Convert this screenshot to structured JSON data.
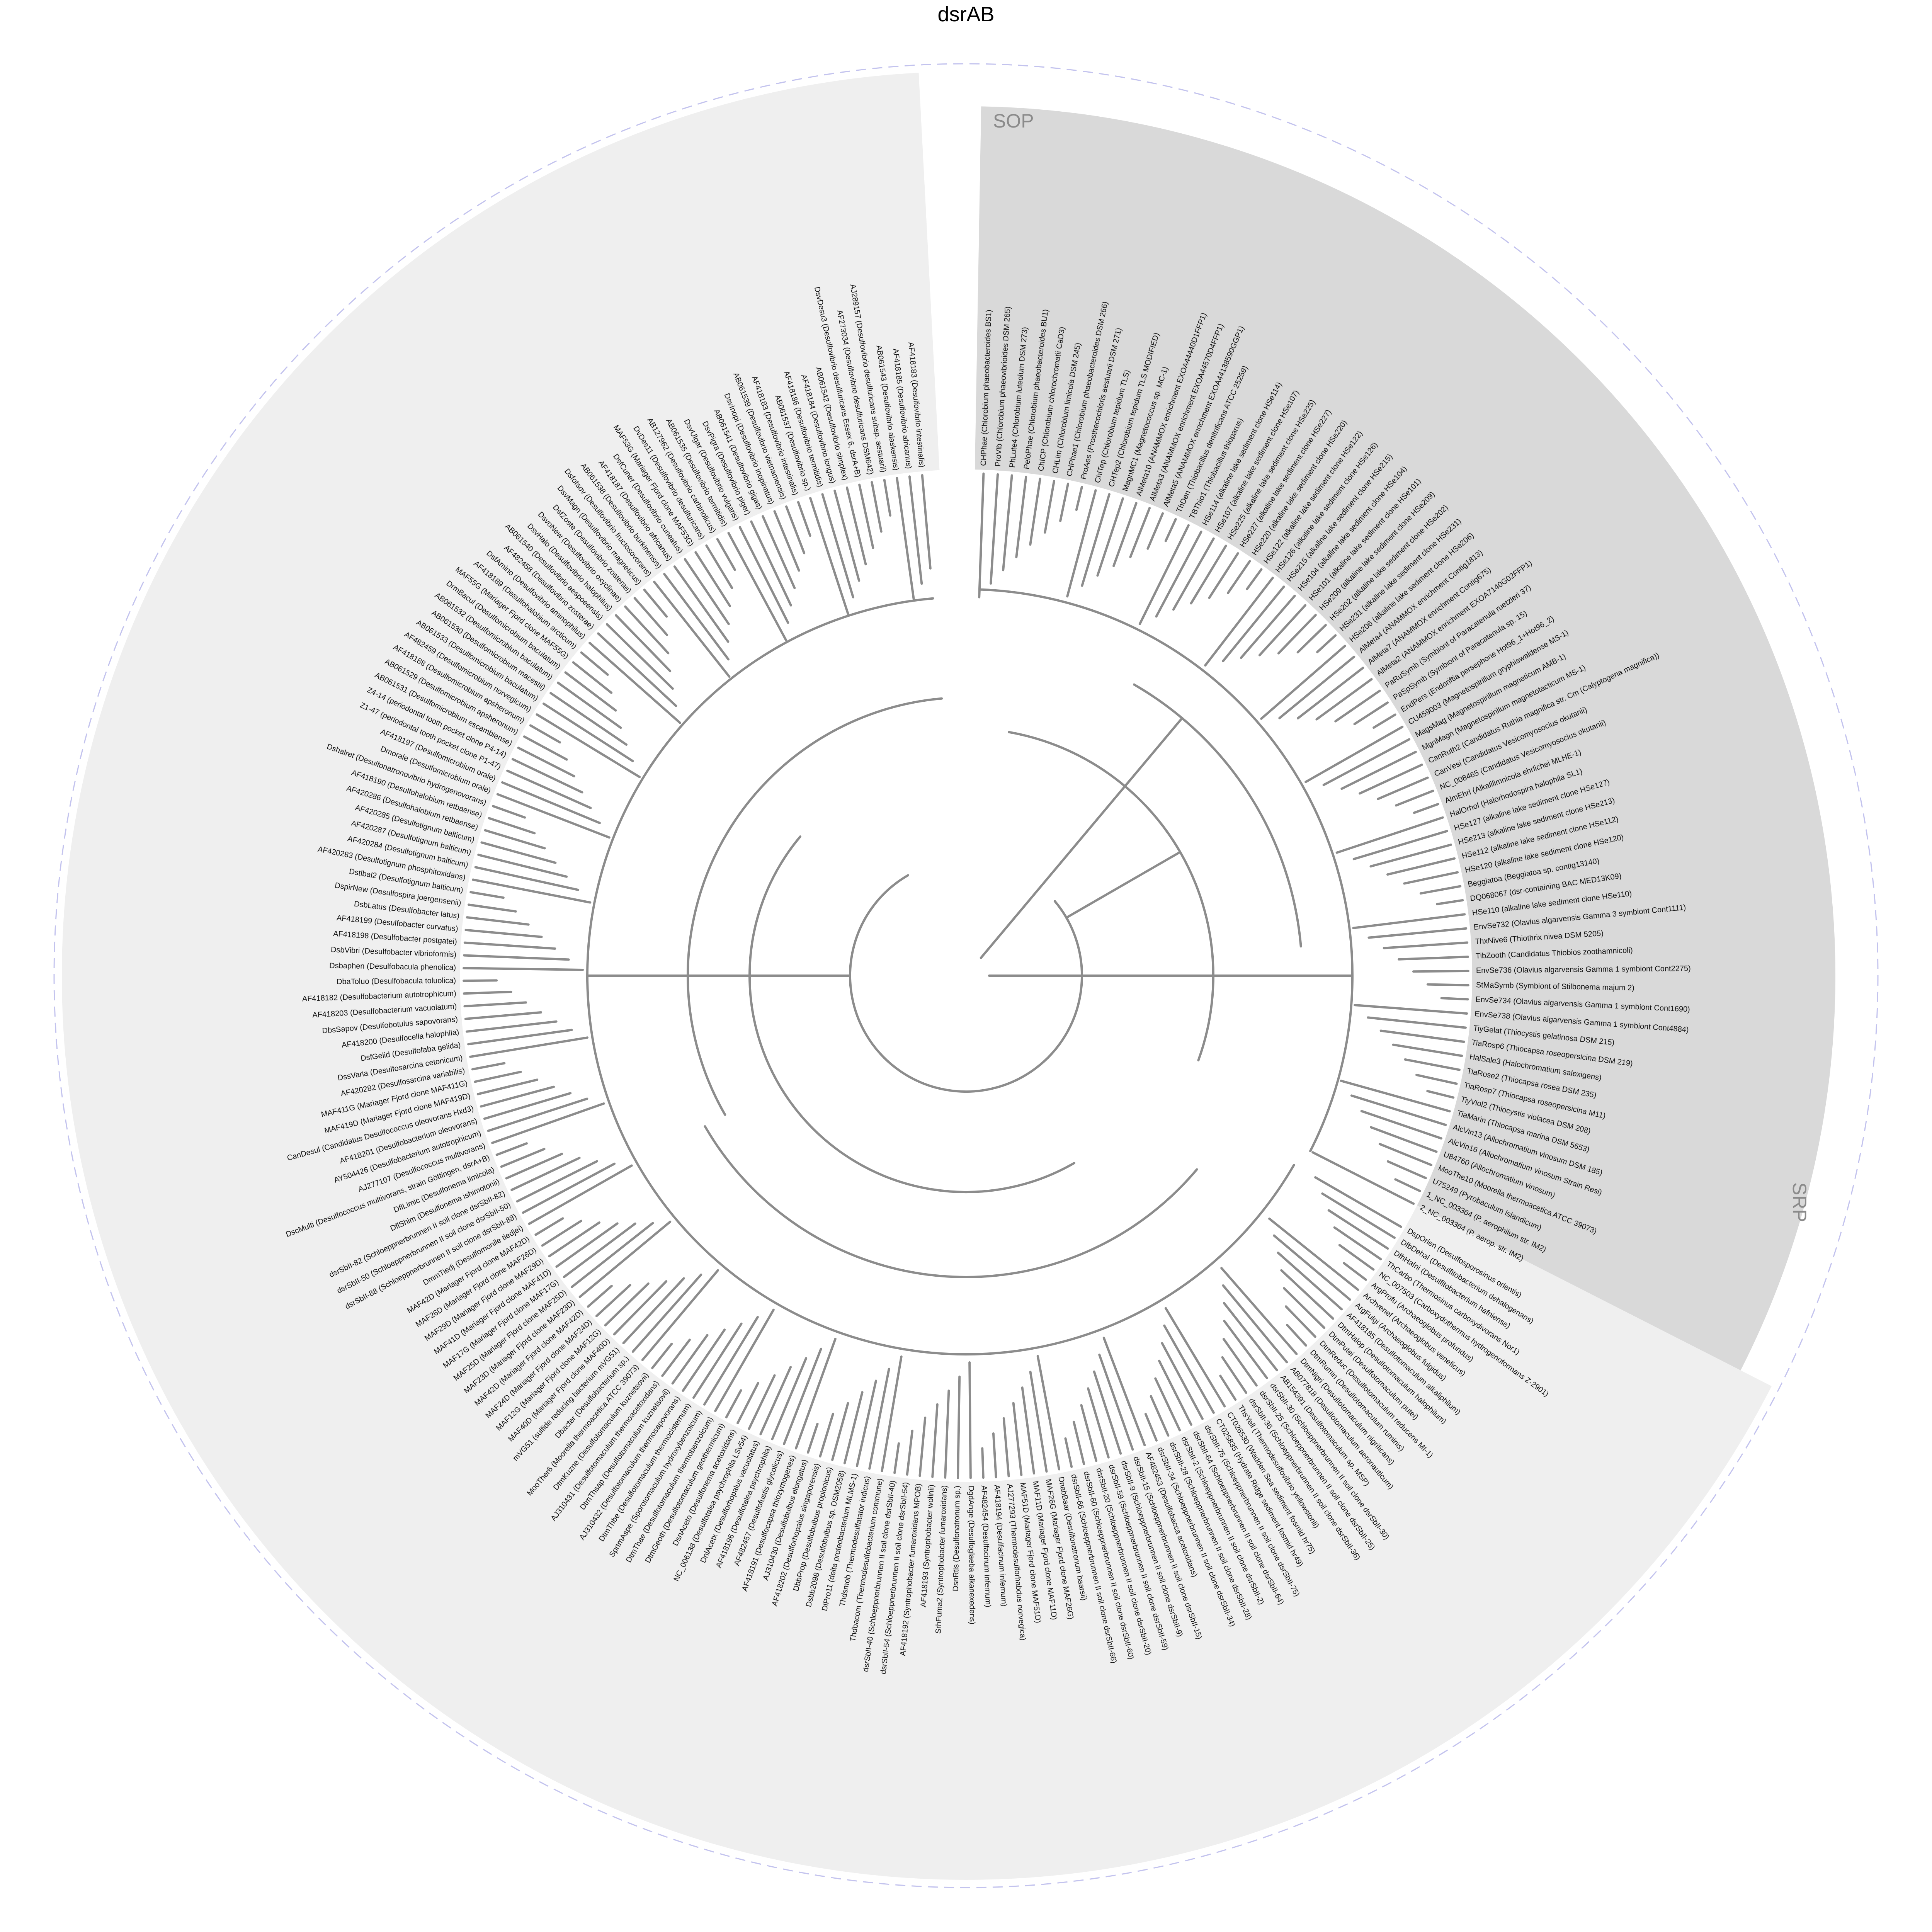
{
  "title": "dsrAB",
  "colors": {
    "sop_sector": "#d9d9d9",
    "srp_sector": "#efefef",
    "branch": "#8c8c8c",
    "outer_ring": "#b9b9e8"
  },
  "clades": [
    {
      "id": "sop",
      "label": "SOP"
    },
    {
      "id": "srp",
      "label": "SRP"
    }
  ],
  "leaves_sop": [
    "CHPhae (Chlorobium phaeobacteroides BS1)",
    "ProVib (Chlorobium phaeovibrioides DSM 265)",
    "PhLute4 (Chlorobium luteolum DSM 273)",
    "PeloPhae (Chlorobium phaeobacteroides BU1)",
    "ChICP (Chlorobium chlorochromatii CaD3)",
    "CHLim (Chlorobium limicola DSM 245)",
    "CHPhae1 (Chlorobium phaeobacteroides DSM 266)",
    "ProAes (Prosthecochloris aestuarii DSM 271)",
    "ChlTep (Chlorobium tepidum TLS)",
    "CHTep2 (Chlorobium tepidum TLS MODIFIED)",
    "MagnMC1 (Magnetococcus sp. MC-1)",
    "AlMeta10 (ANAMMOX enrichment EXOA44440D1FFP1)",
    "AlMeta3 (ANAMMOX enrichment EXOA44570D4FFP1)",
    "AlMeta5 (ANAMMOX enrichment EXOA44138590GGP1)",
    "ThDen (Thiobacillus denitrificans ATCC 25259)",
    "TBThio1 (Thiobacillus thioparus)",
    "HSe114 (alkaline lake sediment clone HSe114)",
    "HSe107 (alkaline lake sediment clone HSe107)",
    "HSe225 (alkaline lake sediment clone HSe225)",
    "HSe227 (alkaline lake sediment clone HSe227)",
    "HSe220 (alkaline lake sediment clone HSe220)",
    "HSe122 (alkaline lake sediment clone HSe122)",
    "HSe126 (alkaline lake sediment clone HSe126)",
    "HSe215 (alkaline lake sediment clone HSe215)",
    "HSe104 (alkaline lake sediment clone HSe104)",
    "HSe101 (alkaline lake sediment clone HSe101)",
    "HSe209 (alkaline lake sediment clone HSe209)",
    "HSe202 (alkaline lake sediment clone HSe202)",
    "HSe231 (alkaline lake sediment clone HSe231)",
    "HSe206 (alkaline lake sediment clone HSe206)",
    "AlMeta4 (ANAMMOX enrichment Contig1813)",
    "AlMeta7 (ANAMMOX enrichment Contig675)",
    "AlMeta2 (ANAMMOX enrichment EXOA7140G02FFP1)",
    "PaRuSymb (Symbiont of Paracatenula ruetzleri 37)",
    "PaSpSymb (Symbiont of Paracatenula sp. 15)",
    "EndPers (Endoriftia persephone Hot96_1+Hot96_2)",
    "CU459003 (Magnetospirillum gryphiswaldense MS-1)",
    "MagsMag (Magnetospirillum magneticum AMB-1)",
    "MgnMagn (Magnetospirillum magnetotacticum MS-1)",
    "CanRuth2 (Candidatus Ruthia magnifica str. Cm (Calyptogena magnifica))",
    "CanVesi (Candidatus Vesicomyosocius okutanii)",
    "NC_008465 (Candidatus Vesicomyosocius okutanii)",
    "AlmEhrl (Alkalilimnicola ehrlichei MLHE-1)",
    "HalOrhol (Halorhodospira halophila SL1)",
    "HSe127 (alkaline lake sediment clone HSe127)",
    "HSe213 (alkaline lake sediment clone HSe213)",
    "HSe112 (alkaline lake sediment clone HSe112)",
    "HSe120 (alkaline lake sediment clone HSe120)",
    "Beggiatoa (Beggiatoa sp. contig13140)",
    "DQ068067 (dsr-containing BAC MED13K09)",
    "HSe110 (alkaline lake sediment clone HSe110)",
    "EnvSe732 (Olavius algarvensis Gamma 3 symbiont Cont1111)",
    "ThxNive6 (Thiothrix nivea DSM 5205)",
    "TibZooth (Candidatus Thiobios zoothamnicoli)",
    "EnvSe736 (Olavius algarvensis Gamma 1 symbiont Cont2275)",
    "StMaSymb (Symbiont of Stilbonema majum 2)",
    "EnvSe734 (Olavius algarvensis Gamma 1 symbiont Cont1690)",
    "EnvSe738 (Olavius algarvensis Gamma 1 symbiont Cont4884)",
    "TiyGelat (Thiocystis gelatinosa DSM 215)",
    "TiaRosp6 (Thiocapsa roseopersicina DSM 219)",
    "HalSale3 (Halochromatium salexigens)",
    "TiaRose2 (Thiocapsa rosea DSM 235)",
    "TiaRosp7 (Thiocapsa roseopersicina M11)",
    "TiyViol2 (Thiocystis violacea DSM 208)",
    "TiaMarin (Thiocapsa marina DSM 5653)",
    "AlcVin13 (Allochromatium vinosum DSM 185)",
    "AlcVin16 (Allochromatium vinosum Strain Resi)",
    "U84760 (Allochromatium vinosum)",
    "MooThe10 (Moorella thermoacetica ATCC 39073)",
    "U75249 (Pyrobaculum islandicum)",
    "1_NC_003364 (P. aerophilum str. IM2)",
    "2_NC_003364 (P. aerop. str. IM2)"
  ],
  "leaves_srp": [
    "DspOrien (Desulfosporosinus orientis)",
    "DfbDehal (Desulfitobacterium dehalogenans)",
    "DfhHafni (Desulfitobacterium hafniense)",
    "ThCarbo (Thermosinus carboxydivorans Nor1)",
    "NC_007503 (Carboxydothermus hydrogenoformans Z-2901)",
    "ArgProfu (Archaeoglobus profundus)",
    "Archvenef (Archaeoglobus veneficus)",
    "ArgFulgi (Archaeoglobus fulgidus)",
    "AF418185 (Desulfotomaculum alkaliphilum)",
    "DtmHalop (Desulfotomaculum halophilum)",
    "DtmPutei (Desulfotomaculum putei)",
    "DtmReduc (Desulfotomaculum reducens MI-1)",
    "DtmRumin (Desulfotomaculum ruminis)",
    "DtmNigri (Desulfotomaculum nigrificans)",
    "AB077818 (Desulfotomaculum aeronauticum)",
    "AB154391 (Desulfotomaculum sp. MSP)",
    "dsrSbII-30 (Schloeppnerbrunnen II soil clone dsrSbII-30)",
    "dsrSbII-25 (Schloeppnerbrunnen II soil clone dsrSbII-25)",
    "dsrSbII-36 (Schloeppnerbrunnen II soil clone dsrSbII-36)",
    "ThsYell (Thermodesulfovibrio yellowstonii)",
    "CT026530 (Wadden Sea sediment fosmid hr75)",
    "CT025835 (Hydrate Ridge sediment fosmid hr49)",
    "dsrSbII-75 (Schloeppnerbrunnen II soil clone dsrSbII-75)",
    "dsrSbII-64 (Schloeppnerbrunnen II soil clone dsrSbII-64)",
    "dsrSbII-2 (Schloeppnerbrunnen II soil clone dsrSbII-2)",
    "dsrSbII-28 (Schloeppnerbrunnen II soil clone dsrSbII-28)",
    "dsrSbII-34 (Schloeppnerbrunnen II soil clone dsrSbII-34)",
    "AF482453 (Desulfobacca acetoxidans)",
    "dsrSbII-15 (Schloeppnerbrunnen II soil clone dsrSbII-15)",
    "dsrSbII-9 (Schloeppnerbrunnen II soil clone dsrSbII-9)",
    "dsrSbII-59 (Schloeppnerbrunnen II soil clone dsrSbII-59)",
    "dsrSbII-20 (Schloeppnerbrunnen II soil clone dsrSbII-20)",
    "dsrSbII-60 (Schloeppnerbrunnen II soil clone dsrSbII-60)",
    "dsrSbII-66 (Schloeppnerbrunnen II soil clone dsrSbII-66)",
    "DnabBaar (Desulfonatronum baarsii)",
    "MAF26G (Mariager Fjord clone MAF26G)",
    "MAF11D (Mariager Fjord clone MAF11D)",
    "MAF51D (Mariager Fjord clone MAF51D)",
    "AJ277293 (Thermodesulforhabdus norvegica)",
    "AF418194 (Desulfacinum infernum)",
    "AF482454 (Desulfacinum infernum)",
    "DgdAnge (Desulfoglaeba alkanexedens)",
    "DsnRtis (Desulfonatronum sp.)",
    "SrhFuma2 (Syntrophobacter fumaroxidans)",
    "AF418193 (Syntrophobacter wolinii)",
    "AF418192 (Syntrophobacter fumaroxidans MPOB)",
    "dsrSbII-54 (Schloeppnerbrunnen II soil clone dsrSbII-54)",
    "dsrSbII-40 (Schloeppnerbrunnen II soil clone dsrSbII-40)",
    "Thdbacom (Thermodesulfobacterium commune)",
    "Thdsmob (Thermodesulfatator indicus)",
    "DlPro11 (delta proteobacterium MLMS-1)",
    "Dsbb2098 (Desulfobulbus sp. DSM2058)",
    "DbbProp (Desulfobulbus propionicus)",
    "AF418202 (Desulforhopalus singaporensis)",
    "AJ310430 (Desulfobulbus elongatus)",
    "AF418191 (Desulfocapsa thiozymogenes)",
    "AF482457 (Desulfofustis glycolicus)",
    "AF418196 (Desulfotalea psychrophila)",
    "DnlAcetx (Desulforhopalus vacuolatus)",
    "NC_006138 (Desulfotalea psychrophila LSv54)",
    "DsnAceto (Desulfonema acetoxidans)",
    "DtmGeoth (Desulfotomaculum geothermicum)",
    "DtmThae (Desulfotomaculum thermobenzoicum)",
    "SprtmAspe (Sporotomaculum hydroxybenzoicum)",
    "DtmThbe (Desulfotomaculum thermocisternum)",
    "AJ310432 (Desulfotomaculum thermosapovorans)",
    "DtmThsap (Desulfotomaculum kuznetsovii)",
    "AJ310431 (Desulfotomaculum thermoacetoxidans)",
    "DtmKuzne (Desulfotomaculum kuznetsovii)",
    "MooTher6 (Moorella thermoacetica ATCC 39073)",
    "Dbacter (Desulfobacterium sp.)",
    "mVG51 (sulfide reducing bacterium mVG51)",
    "MAF40D (Mariager Fjord clone MAF40D)",
    "MAF12G (Mariager Fjord clone MAF12G)",
    "MAF24D (Mariager Fjord clone MAF24D)",
    "MAF42D (Mariager Fjord clone MAF42D)",
    "MAF23D (Mariager Fjord clone MAF23D)",
    "MAF25D (Mariager Fjord clone MAF25D)",
    "MAF17G (Mariager Fjord clone MAF17G)",
    "MAF41D (Mariager Fjord clone MAF41D)",
    "MAF29D (Mariager Fjord clone MAF29D)",
    "MAF26D (Mariager Fjord clone MAF26D)",
    "MAF42D (Mariager Fjord clone MAF42D)",
    "DmmTiedj (Desulfomonile tiedjei)",
    "dsrSbII-88 (Schloeppnerbrunnen II soil clone dsrSbII-88)",
    "dsrSbII-50 (Schloeppnerbrunnen II soil clone dsrSbII-50)",
    "dsrSbII-82 (Schloeppnerbrunnen II soil clone dsrSbII-82)",
    "DflShim (Desulfonema ishimotonii)",
    "DflLimic (Desulfonema limicola)",
    "DscMulti (Desulfococcus multivorans, strain Göttingen, dsrA+B)",
    "AJ277107 (Desulfococcus multivorans)",
    "AY504426 (Desulfobacterium autotrophicum)",
    "AF418201 (Desulfobacterium oleovorans)",
    "CanDesul (Candidatus Desulfococcus oleovorans Hxd3)",
    "MAF419D (Mariager Fjord clone MAF419D)",
    "MAF411G (Mariager Fjord clone MAF411G)",
    "AF420282 (Desulfosarcina variabilis)",
    "DssVaria (Desulfosarcina cetonicum)",
    "DsfGelid (Desulfofaba gelida)",
    "AF418200 (Desulfocella halophila)",
    "DbsSapov (Desulfobotulus sapovorans)",
    "AF418203 (Desulfobacterium vacuolatum)",
    "AF418182 (Desulfobacterium autotrophicum)",
    "DbaToluo (Desulfobacula toluolica)",
    "Dsbaphen (Desulfobacula phenolica)",
    "DsbVibri (Desulfobacter vibrioformis)",
    "AF418198 (Desulfobacter postgatei)",
    "AF418199 (Desulfobacter curvatus)",
    "DsbLatus (Desulfobacter latus)",
    "DspirNew (Desulfospira joergensenii)",
    "Dstlbal2 (Desulfotignum balticum)",
    "AF420283 (Desulfotignum phosphitoxidans)",
    "AF420284 (Desulfotignum balticum)",
    "AF420287 (Desulfotignum balticum)",
    "AF420285 (Desulfotignum balticum)",
    "AF420286 (Desulfohalobium retbaense)",
    "AF418190 (Desulfohalobium retbaense)",
    "Dshalret (Desulfonatronovibrio hydrogenovorans)",
    "Dmorale (Desulfomicrobium orale)",
    "AF418197 (Desulfomicrobium orale)",
    "Z1-47 (periodontal tooth pocket clone P1-47)",
    "Z4-14 (periodontal tooth pocket clone P4-14)",
    "AB061531 (Desulfomicrobium escambiense)",
    "AB061529 (Desulfomicrobium apsheronum)",
    "AF418188 (Desulfomicrobium apsheronum)",
    "AF482459 (Desulfomicrobium norvegicum)",
    "AB061533 (Desulfomicrobium baculatum)",
    "AB061530 (Desulfomicrobium macestii)",
    "AB061532 (Desulfomicrobium baculatum)",
    "DrmBacul (Desulfomicrobium baculatum)",
    "MAF55G (Mariager Fjord clone MAF55G)",
    "AF418189 (Desulfohalobium arcticum)",
    "DsfAmino (Desulfovibrio aminophilus)",
    "AF482458 (Desulfovibrio zosterae)",
    "AB061540 (Desulfovibrio aespoeensis)",
    "DsvHalo (Desulfovibrio halophilus)",
    "DsvoNew (Desulfovibrio oxyclinae)",
    "DsfZoste (Desulfovibrio zosterae)",
    "DsvMagn (Desulfovibrio magneticus)",
    "Dsfotsov (Desulfovibrio fructosovorans)",
    "AB061538 (Desulfovibrio burkinensis)",
    "AF418187 (Desulfovibrio africanus)",
    "DsfCuner (Desulfovibrio cuneatus)",
    "MAF53G (Mariager Fjord clone MAF53G)",
    "DvDes11 (Desulfovibrio desulfuricans)",
    "AB127962 (Desulfovibrio carbinolicus)",
    "AB061535 (Desulfovibrio termitidis)",
    "DsvUlgar (Desulfovibrio vulgaris)",
    "DsvPigra (Desulfovibrio piger)",
    "AB061541 (Desulfovibrio gigas)",
    "DsvInopi (Desulfovibrio inopinatus)",
    "AB061539 (Desulfovibrio vietnamensis)",
    "AF418183 (Desulfovibrio intestinalis)",
    "AB061537 (Desulfovibrio sp.)",
    "AF418186 (Desulfovibrio termitidis)",
    "AF418184 (Desulfovibrio longus)",
    "AB061542 (Desulfovibrio simplex)",
    "DsvDesu3 (Desulfovibrio desulfuricans Essex 6, dsrA+B)",
    "AF273034 (Desulfovibrio desulfuricans DSM642)",
    "AJ289157 (Desulfovibrio desulfuricans subsp. aestuarii)",
    "AB061543 (Desulfovibrio alaskensis)",
    "AF418185 (Desulfovibrio africanus)",
    "AF418183 (Desulfovibrio intestinalis)"
  ]
}
